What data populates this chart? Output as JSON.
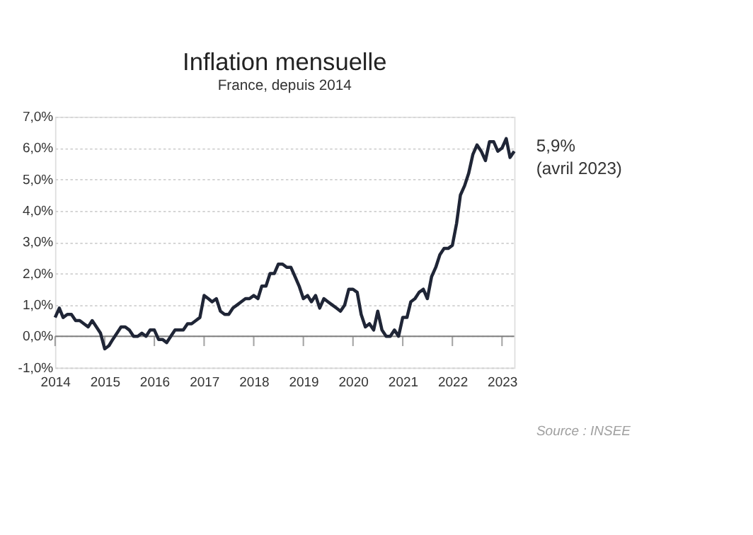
{
  "chart_data": {
    "type": "line",
    "title": "Inflation mensuelle",
    "subtitle": "France, depuis 2014",
    "x": [
      "2014-01",
      "2014-02",
      "2014-03",
      "2014-04",
      "2014-05",
      "2014-06",
      "2014-07",
      "2014-08",
      "2014-09",
      "2014-10",
      "2014-11",
      "2014-12",
      "2015-01",
      "2015-02",
      "2015-03",
      "2015-04",
      "2015-05",
      "2015-06",
      "2015-07",
      "2015-08",
      "2015-09",
      "2015-10",
      "2015-11",
      "2015-12",
      "2016-01",
      "2016-02",
      "2016-03",
      "2016-04",
      "2016-05",
      "2016-06",
      "2016-07",
      "2016-08",
      "2016-09",
      "2016-10",
      "2016-11",
      "2016-12",
      "2017-01",
      "2017-02",
      "2017-03",
      "2017-04",
      "2017-05",
      "2017-06",
      "2017-07",
      "2017-08",
      "2017-09",
      "2017-10",
      "2017-11",
      "2017-12",
      "2018-01",
      "2018-02",
      "2018-03",
      "2018-04",
      "2018-05",
      "2018-06",
      "2018-07",
      "2018-08",
      "2018-09",
      "2018-10",
      "2018-11",
      "2018-12",
      "2019-01",
      "2019-02",
      "2019-03",
      "2019-04",
      "2019-05",
      "2019-06",
      "2019-07",
      "2019-08",
      "2019-09",
      "2019-10",
      "2019-11",
      "2019-12",
      "2020-01",
      "2020-02",
      "2020-03",
      "2020-04",
      "2020-05",
      "2020-06",
      "2020-07",
      "2020-08",
      "2020-09",
      "2020-10",
      "2020-11",
      "2020-12",
      "2021-01",
      "2021-02",
      "2021-03",
      "2021-04",
      "2021-05",
      "2021-06",
      "2021-07",
      "2021-08",
      "2021-09",
      "2021-10",
      "2021-11",
      "2021-12",
      "2022-01",
      "2022-02",
      "2022-03",
      "2022-04",
      "2022-05",
      "2022-06",
      "2022-07",
      "2022-08",
      "2022-09",
      "2022-10",
      "2022-11",
      "2022-12",
      "2023-01",
      "2023-02",
      "2023-03",
      "2023-04"
    ],
    "series": [
      {
        "color": "#1f2536",
        "values": [
          0.6,
          0.9,
          0.6,
          0.7,
          0.7,
          0.5,
          0.5,
          0.4,
          0.3,
          0.5,
          0.3,
          0.1,
          -0.4,
          -0.3,
          -0.1,
          0.1,
          0.3,
          0.3,
          0.2,
          0.0,
          0.0,
          0.1,
          0.0,
          0.2,
          0.2,
          -0.1,
          -0.1,
          -0.2,
          0.0,
          0.2,
          0.2,
          0.2,
          0.4,
          0.4,
          0.5,
          0.6,
          1.3,
          1.2,
          1.1,
          1.2,
          0.8,
          0.7,
          0.7,
          0.9,
          1.0,
          1.1,
          1.2,
          1.2,
          1.3,
          1.2,
          1.6,
          1.6,
          2.0,
          2.0,
          2.3,
          2.3,
          2.2,
          2.2,
          1.9,
          1.6,
          1.2,
          1.3,
          1.1,
          1.3,
          0.9,
          1.2,
          1.1,
          1.0,
          0.9,
          0.8,
          1.0,
          1.5,
          1.5,
          1.4,
          0.7,
          0.3,
          0.4,
          0.2,
          0.8,
          0.2,
          0.0,
          0.0,
          0.2,
          0.0,
          0.6,
          0.6,
          1.1,
          1.2,
          1.4,
          1.5,
          1.2,
          1.9,
          2.2,
          2.6,
          2.8,
          2.8,
          2.9,
          3.6,
          4.5,
          4.8,
          5.2,
          5.8,
          6.1,
          5.9,
          5.6,
          6.2,
          6.2,
          5.9,
          6.0,
          6.3,
          5.7,
          5.9
        ]
      }
    ],
    "xlim": [
      "2014-01",
      "2023-04"
    ],
    "xticks": [
      "2014",
      "2015",
      "2016",
      "2017",
      "2018",
      "2019",
      "2020",
      "2021",
      "2022",
      "2023"
    ],
    "ylim": [
      -1,
      7
    ],
    "yticks": [
      {
        "value": -1,
        "label": "-1,0%"
      },
      {
        "value": 0,
        "label": "0,0%"
      },
      {
        "value": 1,
        "label": "1,0%"
      },
      {
        "value": 2,
        "label": "2,0%"
      },
      {
        "value": 3,
        "label": "3,0%"
      },
      {
        "value": 4,
        "label": "4,0%"
      },
      {
        "value": 5,
        "label": "5,0%"
      },
      {
        "value": 6,
        "label": "6,0%"
      },
      {
        "value": 7,
        "label": "7,0%"
      }
    ],
    "grid": "y",
    "marker": "none",
    "line_style": "solid",
    "ref_lines": [
      {
        "axis": "y",
        "value": 0,
        "color": "#7f7f7f"
      }
    ],
    "annotations": [
      {
        "text": "5,9%\n(avril 2023)",
        "x": "2023-04",
        "y": 5.9
      },
      "Source : INSEE"
    ]
  }
}
